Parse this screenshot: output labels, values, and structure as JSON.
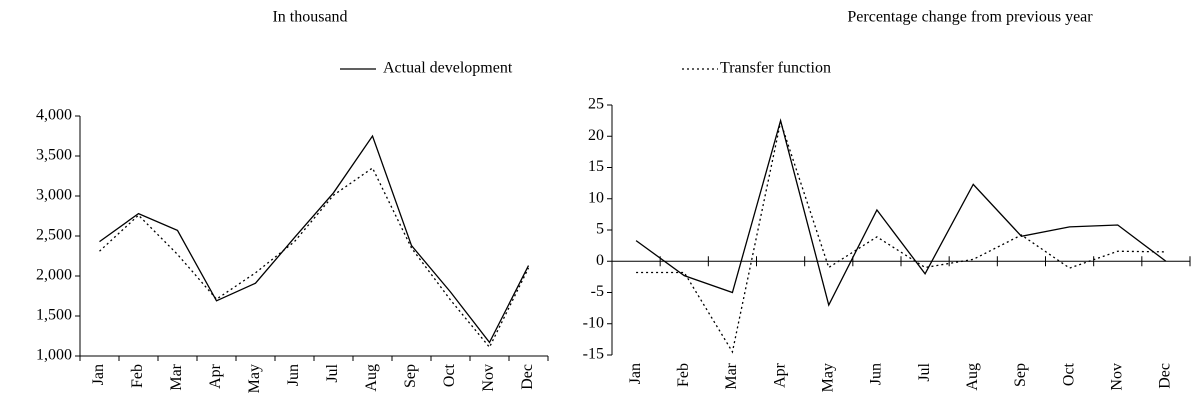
{
  "chart_data": [
    {
      "type": "line",
      "title": "In thousand",
      "categories": [
        "Jan",
        "Feb",
        "Mar",
        "Apr",
        "May",
        "Jun",
        "Jul",
        "Aug",
        "Sep",
        "Oct",
        "Nov",
        "Dec"
      ],
      "series": [
        {
          "name": "Actual development",
          "color": "#000000",
          "style": "solid",
          "values": [
            2430,
            2780,
            2570,
            1690,
            1910,
            2480,
            3040,
            3750,
            2380,
            1800,
            1170,
            2130
          ]
        },
        {
          "name": "Transfer function",
          "color": "#000000",
          "style": "dotted",
          "values": [
            2310,
            2760,
            2270,
            1710,
            2040,
            2430,
            3010,
            3350,
            2350,
            1700,
            1110,
            2100
          ]
        }
      ],
      "ylim": [
        1000,
        4000
      ],
      "yticks": [
        {
          "value": 1000,
          "label": "1,000"
        },
        {
          "value": 1500,
          "label": "1,500"
        },
        {
          "value": 2000,
          "label": "2,000"
        },
        {
          "value": 2500,
          "label": "2,500"
        },
        {
          "value": 3000,
          "label": "3,000"
        },
        {
          "value": 3500,
          "label": "3,500"
        },
        {
          "value": 4000,
          "label": "4,000"
        }
      ]
    },
    {
      "type": "line",
      "title": "Percentage change from previous year",
      "categories": [
        "Jan",
        "Feb",
        "Mar",
        "Apr",
        "May",
        "Jun",
        "Jul",
        "Aug",
        "Sep",
        "Oct",
        "Nov",
        "Dec"
      ],
      "series": [
        {
          "name": "Actual development",
          "color": "#000000",
          "style": "solid",
          "values": [
            3.3,
            -2.3,
            -5,
            22.5,
            -7,
            8.2,
            -2,
            12.3,
            4,
            5.5,
            5.8,
            0
          ]
        },
        {
          "name": "Transfer function",
          "color": "#000000",
          "style": "dotted",
          "values": [
            -1.8,
            -1.8,
            -14.5,
            22.3,
            -1,
            3.9,
            -1,
            0.3,
            4.2,
            -1.1,
            1.6,
            1.5
          ]
        }
      ],
      "ylim": [
        -15,
        25
      ],
      "yticks": [
        -15,
        -10,
        -5,
        0,
        5,
        10,
        15,
        20,
        25
      ]
    }
  ]
}
